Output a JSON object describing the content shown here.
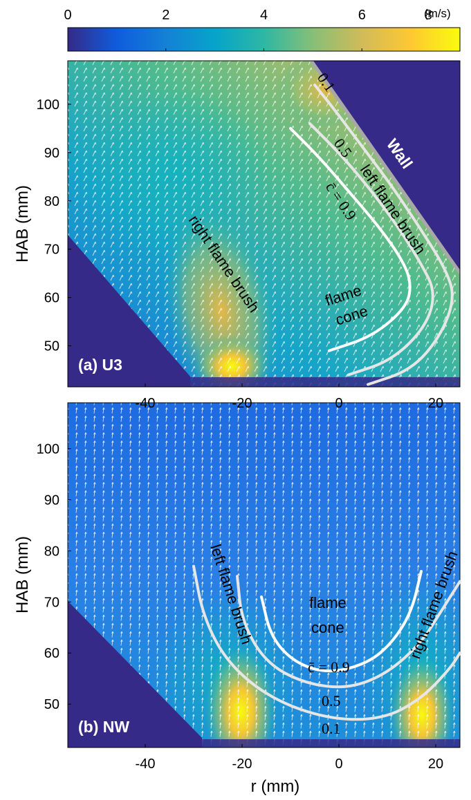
{
  "chart_data": {
    "type": "heatmap",
    "colorbar": {
      "ticks": [
        "0",
        "2",
        "4",
        "6",
        "8"
      ],
      "unit": "(m/s)",
      "range": [
        0,
        8
      ],
      "colormap": "parula",
      "colors": [
        "#352a87",
        "#0f5cdd",
        "#1481d6",
        "#06a4ca",
        "#2eb7a4",
        "#87bf77",
        "#d1bb59",
        "#fec832",
        "#f9fb0e"
      ]
    },
    "x_ticks": [
      "-40",
      "-20",
      "0",
      "20"
    ],
    "xlim": [
      -56,
      25
    ],
    "xlabel": "r (mm)",
    "ylabel": "HAB (mm)",
    "y_ticks": [
      "50",
      "60",
      "70",
      "80",
      "90",
      "100"
    ],
    "ylim": [
      41.5,
      109
    ],
    "panels": [
      {
        "label": "(a) U3",
        "wall_label": "Wall",
        "annotations": {
          "right_brush": "right  flame brush",
          "left_brush": "left  flame brush",
          "cone_line1": "flame",
          "cone_line2": "cone"
        },
        "contours": [
          {
            "label": "0.1",
            "c": 0.1,
            "points": [
              [
                6,
                42
              ],
              [
                15,
                45
              ],
              [
                21,
                52
              ],
              [
                24,
                60
              ],
              [
                22,
                66
              ],
              [
                17,
                74
              ],
              [
                11,
                83
              ],
              [
                5,
                91
              ],
              [
                -1,
                99
              ],
              [
                -5,
                104
              ]
            ]
          },
          {
            "label": "0.5",
            "c": 0.5,
            "points": [
              [
                2,
                44
              ],
              [
                11,
                47
              ],
              [
                18,
                54
              ],
              [
                20,
                61
              ],
              [
                17,
                67
              ],
              [
                12,
                75
              ],
              [
                6,
                83
              ],
              [
                0,
                90
              ],
              [
                -6,
                96
              ]
            ]
          },
          {
            "label": "c̄ = 0.9",
            "c": 0.9,
            "points": [
              [
                -2,
                49
              ],
              [
                7,
                52
              ],
              [
                14,
                58
              ],
              [
                15,
                63
              ],
              [
                13,
                68
              ],
              [
                8,
                75
              ],
              [
                2,
                82
              ],
              [
                -4,
                89
              ],
              [
                -10,
                95
              ]
            ]
          }
        ],
        "velocity_peaks": [
          {
            "r": -23,
            "hab": 43,
            "speed": 8
          },
          {
            "r": -4,
            "hab": 104,
            "speed": 7
          }
        ]
      },
      {
        "label": "(b) NW",
        "annotations": {
          "left_brush": "left  flame brush",
          "right_brush": "right  flame brush",
          "cone_line1": "flame",
          "cone_line2": "cone"
        },
        "contours": [
          {
            "label": "0.1",
            "c": 0.1,
            "points": [
              [
                -30,
                77
              ],
              [
                -28,
                67
              ],
              [
                -23,
                58
              ],
              [
                -14,
                51
              ],
              [
                -2,
                47
              ],
              [
                9,
                47
              ],
              [
                17,
                51
              ],
              [
                23,
                57
              ],
              [
                25,
                60
              ]
            ]
          },
          {
            "label": "0.5",
            "c": 0.5,
            "points": [
              [
                -21,
                75
              ],
              [
                -20,
                66
              ],
              [
                -15,
                58
              ],
              [
                -7,
                54
              ],
              [
                2,
                53
              ],
              [
                10,
                56
              ],
              [
                17,
                62
              ],
              [
                21,
                68
              ],
              [
                25,
                74
              ]
            ]
          },
          {
            "label": "c̄ = 0.9",
            "c": 0.9,
            "points": [
              [
                -16,
                71
              ],
              [
                -14,
                63
              ],
              [
                -9,
                58
              ],
              [
                -2,
                56
              ],
              [
                6,
                58
              ],
              [
                11,
                62
              ],
              [
                15,
                68
              ],
              [
                17,
                76
              ]
            ]
          }
        ],
        "velocity_peaks": [
          {
            "r": -20,
            "hab": 45,
            "speed": 8
          },
          {
            "r": 17,
            "hab": 45,
            "speed": 8
          }
        ]
      }
    ]
  }
}
